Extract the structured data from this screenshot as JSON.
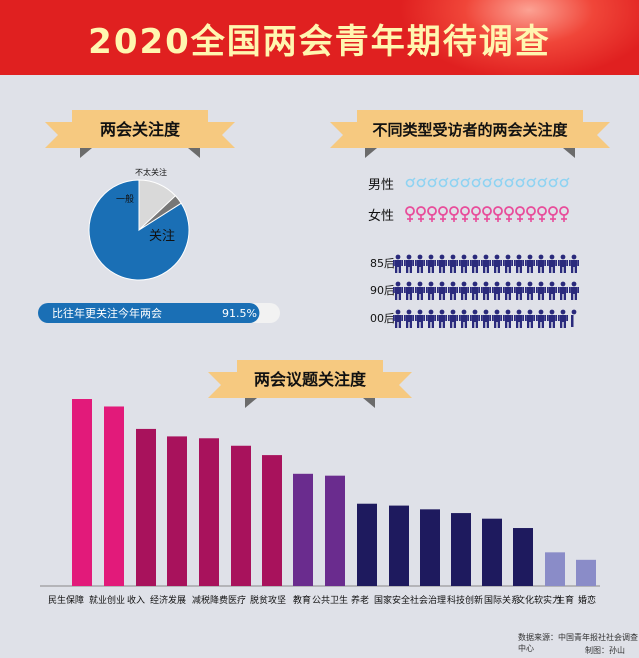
{
  "title": "2020全国两会青年期待调查",
  "colors": {
    "header_red": "#e02020",
    "ribbon": "#f6c980",
    "ribbon_fold": "#6b6b6b",
    "pie_blue": "#1a6fb5",
    "pie_light": "#d9d9d9",
    "pie_gray": "#777777",
    "male_icon": "#8fd3f2",
    "female_icon": "#e84c9a",
    "person_icon": "#2a2a7c"
  },
  "section1": {
    "ribbon_title": "两会关注度",
    "pie_labels": {
      "not_much": "不太关注",
      "normal": "一般",
      "attention": "关注"
    },
    "bar_text": "比往年更关注今年两会",
    "bar_value_text": "91.5%",
    "bar_value": 91.5
  },
  "section2": {
    "ribbon_title": "不同类型受访者的两会关注度",
    "male_label": "男性",
    "female_label": "女性",
    "groups": [
      {
        "label": "85后",
        "icons": 17
      },
      {
        "label": "90后",
        "icons": 17
      },
      {
        "label": "00后",
        "icons": 16.5
      }
    ]
  },
  "section3": {
    "ribbon_title": "两会议题关注度"
  },
  "chart_data": {
    "type": "bar",
    "categories": [
      "民生保障",
      "就业创业",
      "收入",
      "经济发展",
      "减税降费",
      "医疗",
      "脱贫攻坚",
      "教育",
      "公共卫生",
      "养老",
      "国家安全",
      "社会治理",
      "科技创新",
      "国际关系",
      "文化软实力",
      "生育"
    ],
    "values": [
      100,
      96,
      84,
      80,
      79,
      75,
      70,
      60,
      59,
      44,
      43,
      41,
      39,
      36,
      31,
      18
    ],
    "bar_colors": [
      "#e21a7a",
      "#e21a7a",
      "#a8125c",
      "#a8125c",
      "#a8125c",
      "#a8125c",
      "#a8125c",
      "#6a2c8e",
      "#6a2c8e",
      "#1e1a5e",
      "#1e1a5e",
      "#1e1a5e",
      "#1e1a5e",
      "#1e1a5e",
      "#1e1a5e",
      "#8a8cc8"
    ],
    "extra_bar": {
      "label": "婚恋",
      "value": 14,
      "color": "#8a8cc8"
    },
    "ylim": [
      0,
      100
    ],
    "grid": false
  },
  "pie_data": {
    "slices": [
      {
        "label": "关注",
        "percent": 84
      },
      {
        "label": "一般",
        "percent": 13
      },
      {
        "label": "不太关注",
        "percent": 3
      }
    ]
  },
  "footer": {
    "source": "数据来源：中国青年报社社会调查中心",
    "author": "制图：孙山"
  }
}
